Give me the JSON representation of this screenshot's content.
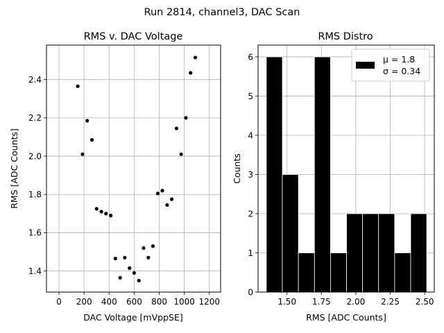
{
  "suptitle": "Run 2814, channel3, DAC Scan",
  "chart_data": [
    {
      "type": "scatter",
      "title": "RMS v. DAC Voltage",
      "xlabel": "DAC Voltage [mVppSE]",
      "ylabel": "RMS [ADC Counts]",
      "xlim": [
        -100,
        1290
      ],
      "ylim": [
        1.29,
        2.58
      ],
      "xticks": [
        0,
        200,
        400,
        600,
        800,
        1000,
        1200
      ],
      "yticks": [
        1.4,
        1.6,
        1.8,
        2.0,
        2.2,
        2.4
      ],
      "ytick_labels": [
        "1.4",
        "1.6",
        "1.8",
        "2.0",
        "2.2",
        "2.4"
      ],
      "grid": true,
      "marker_color": "#000000",
      "x": [
        150,
        188,
        225,
        263,
        300,
        338,
        375,
        413,
        450,
        488,
        525,
        563,
        600,
        638,
        675,
        713,
        750,
        788,
        825,
        863,
        900,
        938,
        975,
        1013,
        1050,
        1088
      ],
      "y": [
        2.365,
        2.01,
        2.185,
        2.085,
        1.725,
        1.71,
        1.7,
        1.69,
        1.465,
        1.365,
        1.47,
        1.415,
        1.39,
        1.35,
        1.52,
        1.47,
        1.53,
        1.805,
        1.82,
        1.745,
        1.775,
        2.145,
        2.01,
        2.2,
        2.435,
        2.515
      ]
    },
    {
      "type": "bar",
      "title": "RMS Distro",
      "xlabel": "RMS [ADC Counts]",
      "ylabel": "Counts",
      "xlim": [
        1.29,
        2.57
      ],
      "ylim": [
        0,
        6.3
      ],
      "xticks": [
        1.5,
        1.75,
        2.0,
        2.25,
        2.5
      ],
      "xtick_labels": [
        "1.50",
        "1.75",
        "2.00",
        "2.25",
        "2.50"
      ],
      "yticks": [
        0,
        1,
        2,
        3,
        4,
        5,
        6
      ],
      "grid": true,
      "bar_color": "#000000",
      "bin_edges": [
        1.35,
        1.4665,
        1.583,
        1.6995,
        1.816,
        1.9325,
        2.049,
        2.1655,
        2.282,
        2.3985,
        2.515
      ],
      "counts": [
        6,
        3,
        1,
        6,
        1,
        2,
        2,
        2,
        1,
        2
      ],
      "legend": {
        "placement": "upper right",
        "lines": [
          "μ = 1.8",
          "σ = 0.34"
        ]
      }
    }
  ]
}
